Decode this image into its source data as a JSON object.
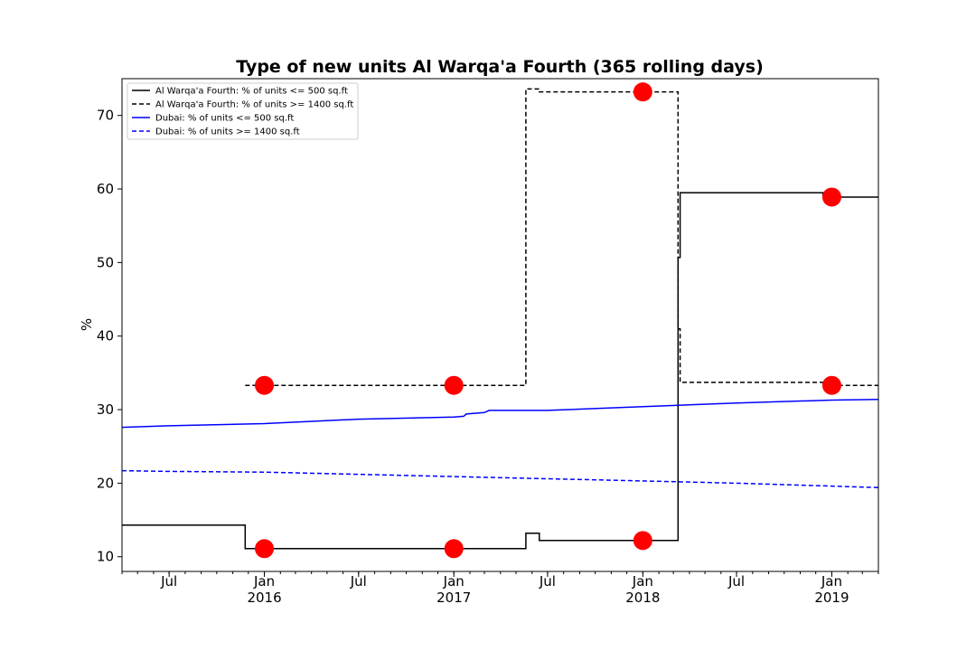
{
  "chart_data": {
    "type": "line",
    "title": "Type of new units Al Warqa'a Fourth (365 rolling days)",
    "xlabel": "",
    "ylabel": "%",
    "xlim": [
      "2015-04-01",
      "2019-04-01"
    ],
    "ylim": [
      8,
      75
    ],
    "grid": false,
    "legend_position": "top-left",
    "y_ticks": [
      10,
      20,
      30,
      40,
      50,
      60,
      70
    ],
    "x_ticks": [
      {
        "date": "2015-07-01",
        "label": "Jul",
        "sublabel": ""
      },
      {
        "date": "2016-01-01",
        "label": "Jan",
        "sublabel": "2016"
      },
      {
        "date": "2016-07-01",
        "label": "Jul",
        "sublabel": ""
      },
      {
        "date": "2017-01-01",
        "label": "Jan",
        "sublabel": "2017"
      },
      {
        "date": "2017-07-01",
        "label": "Jul",
        "sublabel": ""
      },
      {
        "date": "2018-01-01",
        "label": "Jan",
        "sublabel": "2018"
      },
      {
        "date": "2018-07-01",
        "label": "Jul",
        "sublabel": ""
      },
      {
        "date": "2019-01-01",
        "label": "Jan",
        "sublabel": "2019"
      }
    ],
    "series": [
      {
        "name": "Al Warqa'a Fourth: % of units <= 500 sq.ft",
        "color": "#000000",
        "dash": "solid",
        "points": [
          [
            "2015-04-01",
            14.3
          ],
          [
            "2015-11-25",
            14.3
          ],
          [
            "2015-11-25",
            11.1
          ],
          [
            "2017-05-20",
            11.1
          ],
          [
            "2017-05-20",
            13.2
          ],
          [
            "2017-06-15",
            13.2
          ],
          [
            "2017-06-15",
            12.2
          ],
          [
            "2018-03-10",
            12.2
          ],
          [
            "2018-03-10",
            50.7
          ],
          [
            "2018-03-14",
            50.7
          ],
          [
            "2018-03-14",
            59.5
          ],
          [
            "2018-12-15",
            59.5
          ],
          [
            "2018-12-15",
            58.9
          ],
          [
            "2019-04-01",
            58.9
          ]
        ]
      },
      {
        "name": "Al Warqa'a Fourth: % of units >= 1400 sq.ft",
        "color": "#000000",
        "dash": "dashed",
        "points": [
          [
            "2015-11-25",
            33.3
          ],
          [
            "2017-05-20",
            33.3
          ],
          [
            "2017-05-20",
            73.6
          ],
          [
            "2017-06-15",
            73.6
          ],
          [
            "2017-06-15",
            73.2
          ],
          [
            "2018-03-10",
            73.2
          ],
          [
            "2018-03-10",
            41.0
          ],
          [
            "2018-03-14",
            41.0
          ],
          [
            "2018-03-14",
            33.7
          ],
          [
            "2018-12-15",
            33.7
          ],
          [
            "2018-12-15",
            33.3
          ],
          [
            "2019-04-01",
            33.3
          ]
        ]
      },
      {
        "name": "Dubai: % of units <= 500 sq.ft",
        "color": "#0000ff",
        "dash": "solid",
        "points": [
          [
            "2015-04-01",
            27.6
          ],
          [
            "2015-07-01",
            27.8
          ],
          [
            "2016-01-01",
            28.1
          ],
          [
            "2016-07-01",
            28.7
          ],
          [
            "2017-01-01",
            29.0
          ],
          [
            "2017-01-20",
            29.1
          ],
          [
            "2017-01-25",
            29.4
          ],
          [
            "2017-03-01",
            29.6
          ],
          [
            "2017-03-10",
            29.9
          ],
          [
            "2017-07-01",
            29.9
          ],
          [
            "2018-01-01",
            30.4
          ],
          [
            "2018-07-01",
            30.9
          ],
          [
            "2019-01-01",
            31.3
          ],
          [
            "2019-04-01",
            31.4
          ]
        ]
      },
      {
        "name": "Dubai: % of units >= 1400 sq.ft",
        "color": "#0000ff",
        "dash": "dashed",
        "points": [
          [
            "2015-04-01",
            21.7
          ],
          [
            "2015-07-01",
            21.6
          ],
          [
            "2016-01-01",
            21.5
          ],
          [
            "2016-07-01",
            21.2
          ],
          [
            "2017-01-01",
            20.9
          ],
          [
            "2017-07-01",
            20.6
          ],
          [
            "2018-01-01",
            20.3
          ],
          [
            "2018-07-01",
            20.0
          ],
          [
            "2019-01-01",
            19.6
          ],
          [
            "2019-04-01",
            19.4
          ]
        ]
      }
    ],
    "markers": {
      "color": "#ff0000",
      "points": [
        [
          "2016-01-01",
          33.3
        ],
        [
          "2016-01-01",
          11.1
        ],
        [
          "2017-01-01",
          33.3
        ],
        [
          "2017-01-01",
          11.1
        ],
        [
          "2018-01-01",
          73.2
        ],
        [
          "2018-01-01",
          12.2
        ],
        [
          "2019-01-01",
          58.9
        ],
        [
          "2019-01-01",
          33.3
        ]
      ]
    }
  }
}
